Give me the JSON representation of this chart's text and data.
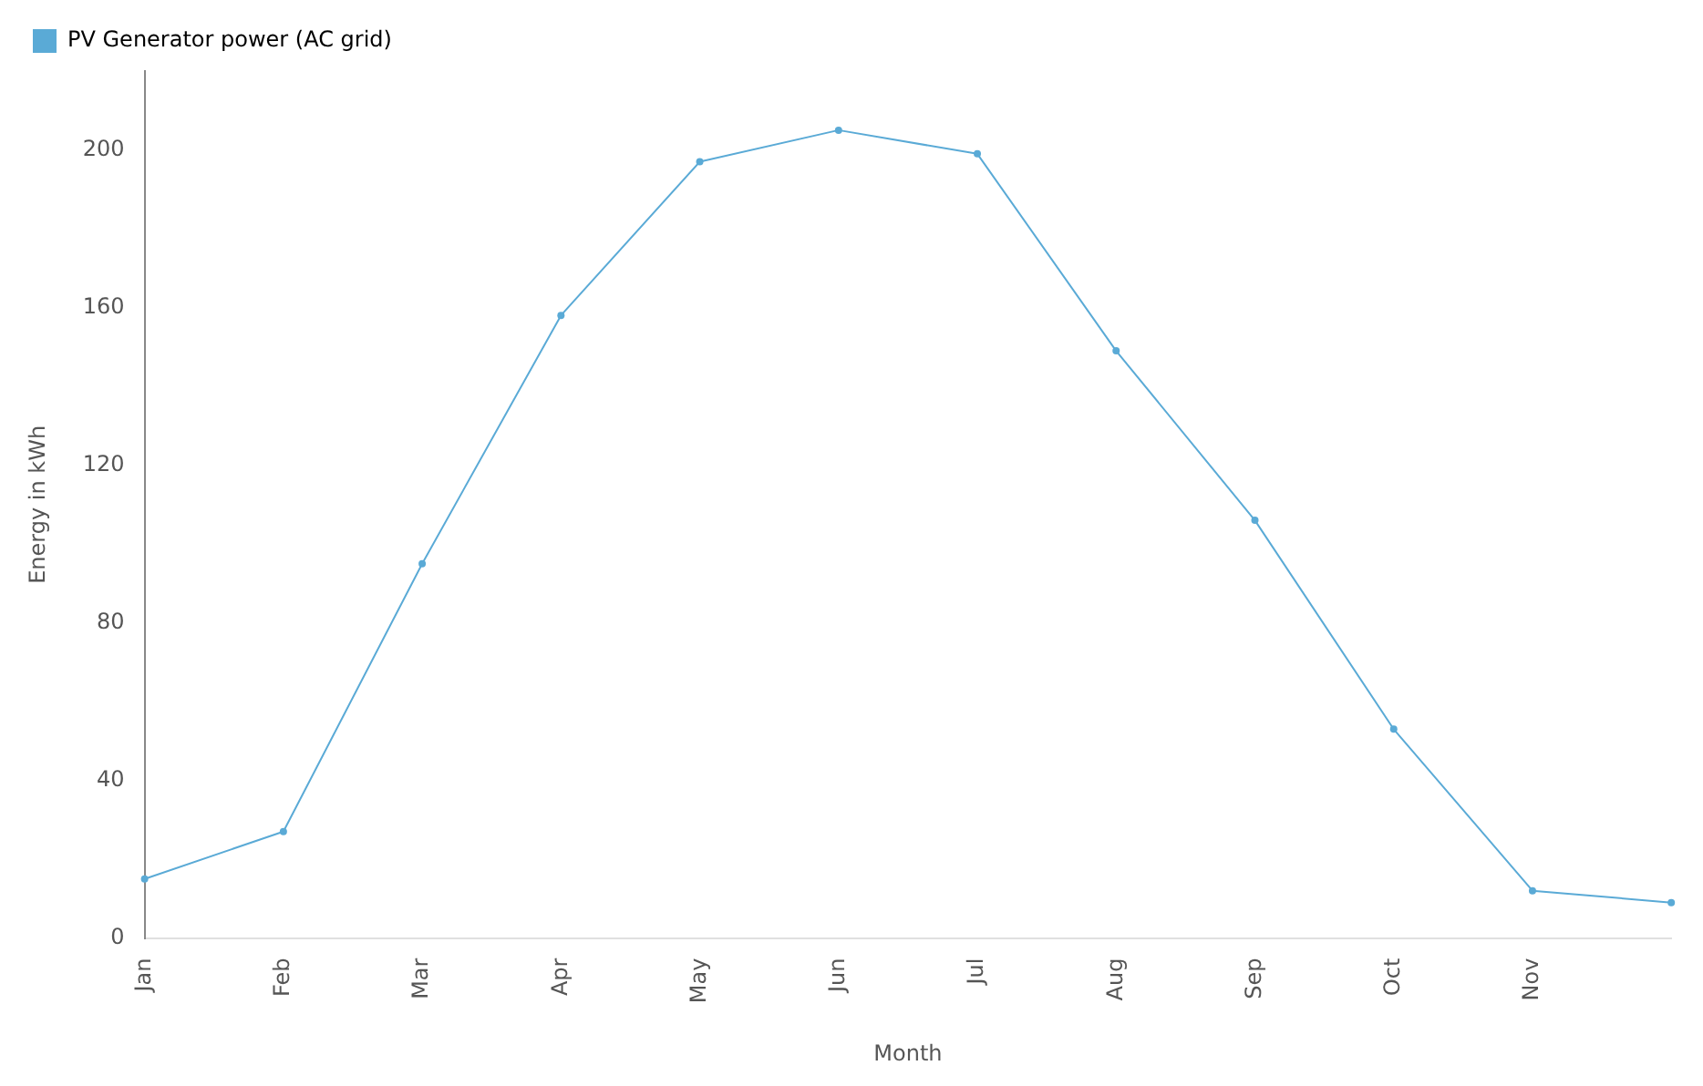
{
  "chart_data": {
    "type": "line",
    "xlabel": "Month",
    "ylabel": "Energy in kWh",
    "categories": [
      "Jan",
      "Feb",
      "Mar",
      "Apr",
      "May",
      "Jun",
      "Jul",
      "Aug",
      "Sep",
      "Oct",
      "Nov",
      null
    ],
    "series": [
      {
        "name": "PV Generator power (AC grid)",
        "color": "#5aaad6",
        "values": [
          15,
          27,
          95,
          158,
          197,
          205,
          199,
          149,
          106,
          53,
          12,
          9
        ]
      }
    ],
    "ylim": [
      0,
      220
    ],
    "yticks": [
      0,
      40,
      80,
      120,
      160,
      200
    ],
    "grid": false,
    "legend": "top left",
    "marker": "circle",
    "line_style": "solid"
  }
}
